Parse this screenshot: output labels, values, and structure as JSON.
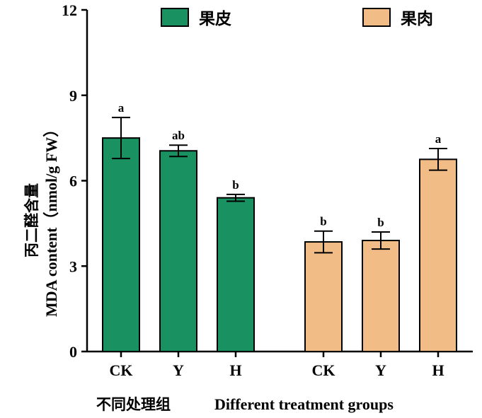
{
  "chart_data": {
    "type": "bar",
    "title": "",
    "xlabel_cn": "不同处理组",
    "xlabel_en": "Different treatment groups",
    "ylabel_cn": "丙二醛含量",
    "ylabel_en": "MDA content（nmol/g  FW）",
    "ylim": [
      0,
      12
    ],
    "yticks": [
      "0",
      "3",
      "6",
      "9",
      "12"
    ],
    "legend_position": "top",
    "series": [
      {
        "name": "果皮",
        "color": "#1a9160",
        "categories": [
          "CK",
          "Y",
          "H"
        ],
        "values": [
          7.5,
          7.05,
          5.4
        ],
        "errors": [
          0.72,
          0.2,
          0.12
        ],
        "significance": [
          "a",
          "ab",
          "b"
        ]
      },
      {
        "name": "果肉",
        "color": "#f2bc86",
        "categories": [
          "CK",
          "Y",
          "H"
        ],
        "values": [
          3.85,
          3.9,
          6.75
        ],
        "errors": [
          0.38,
          0.3,
          0.38
        ],
        "significance": [
          "b",
          "b",
          "a"
        ]
      }
    ]
  }
}
